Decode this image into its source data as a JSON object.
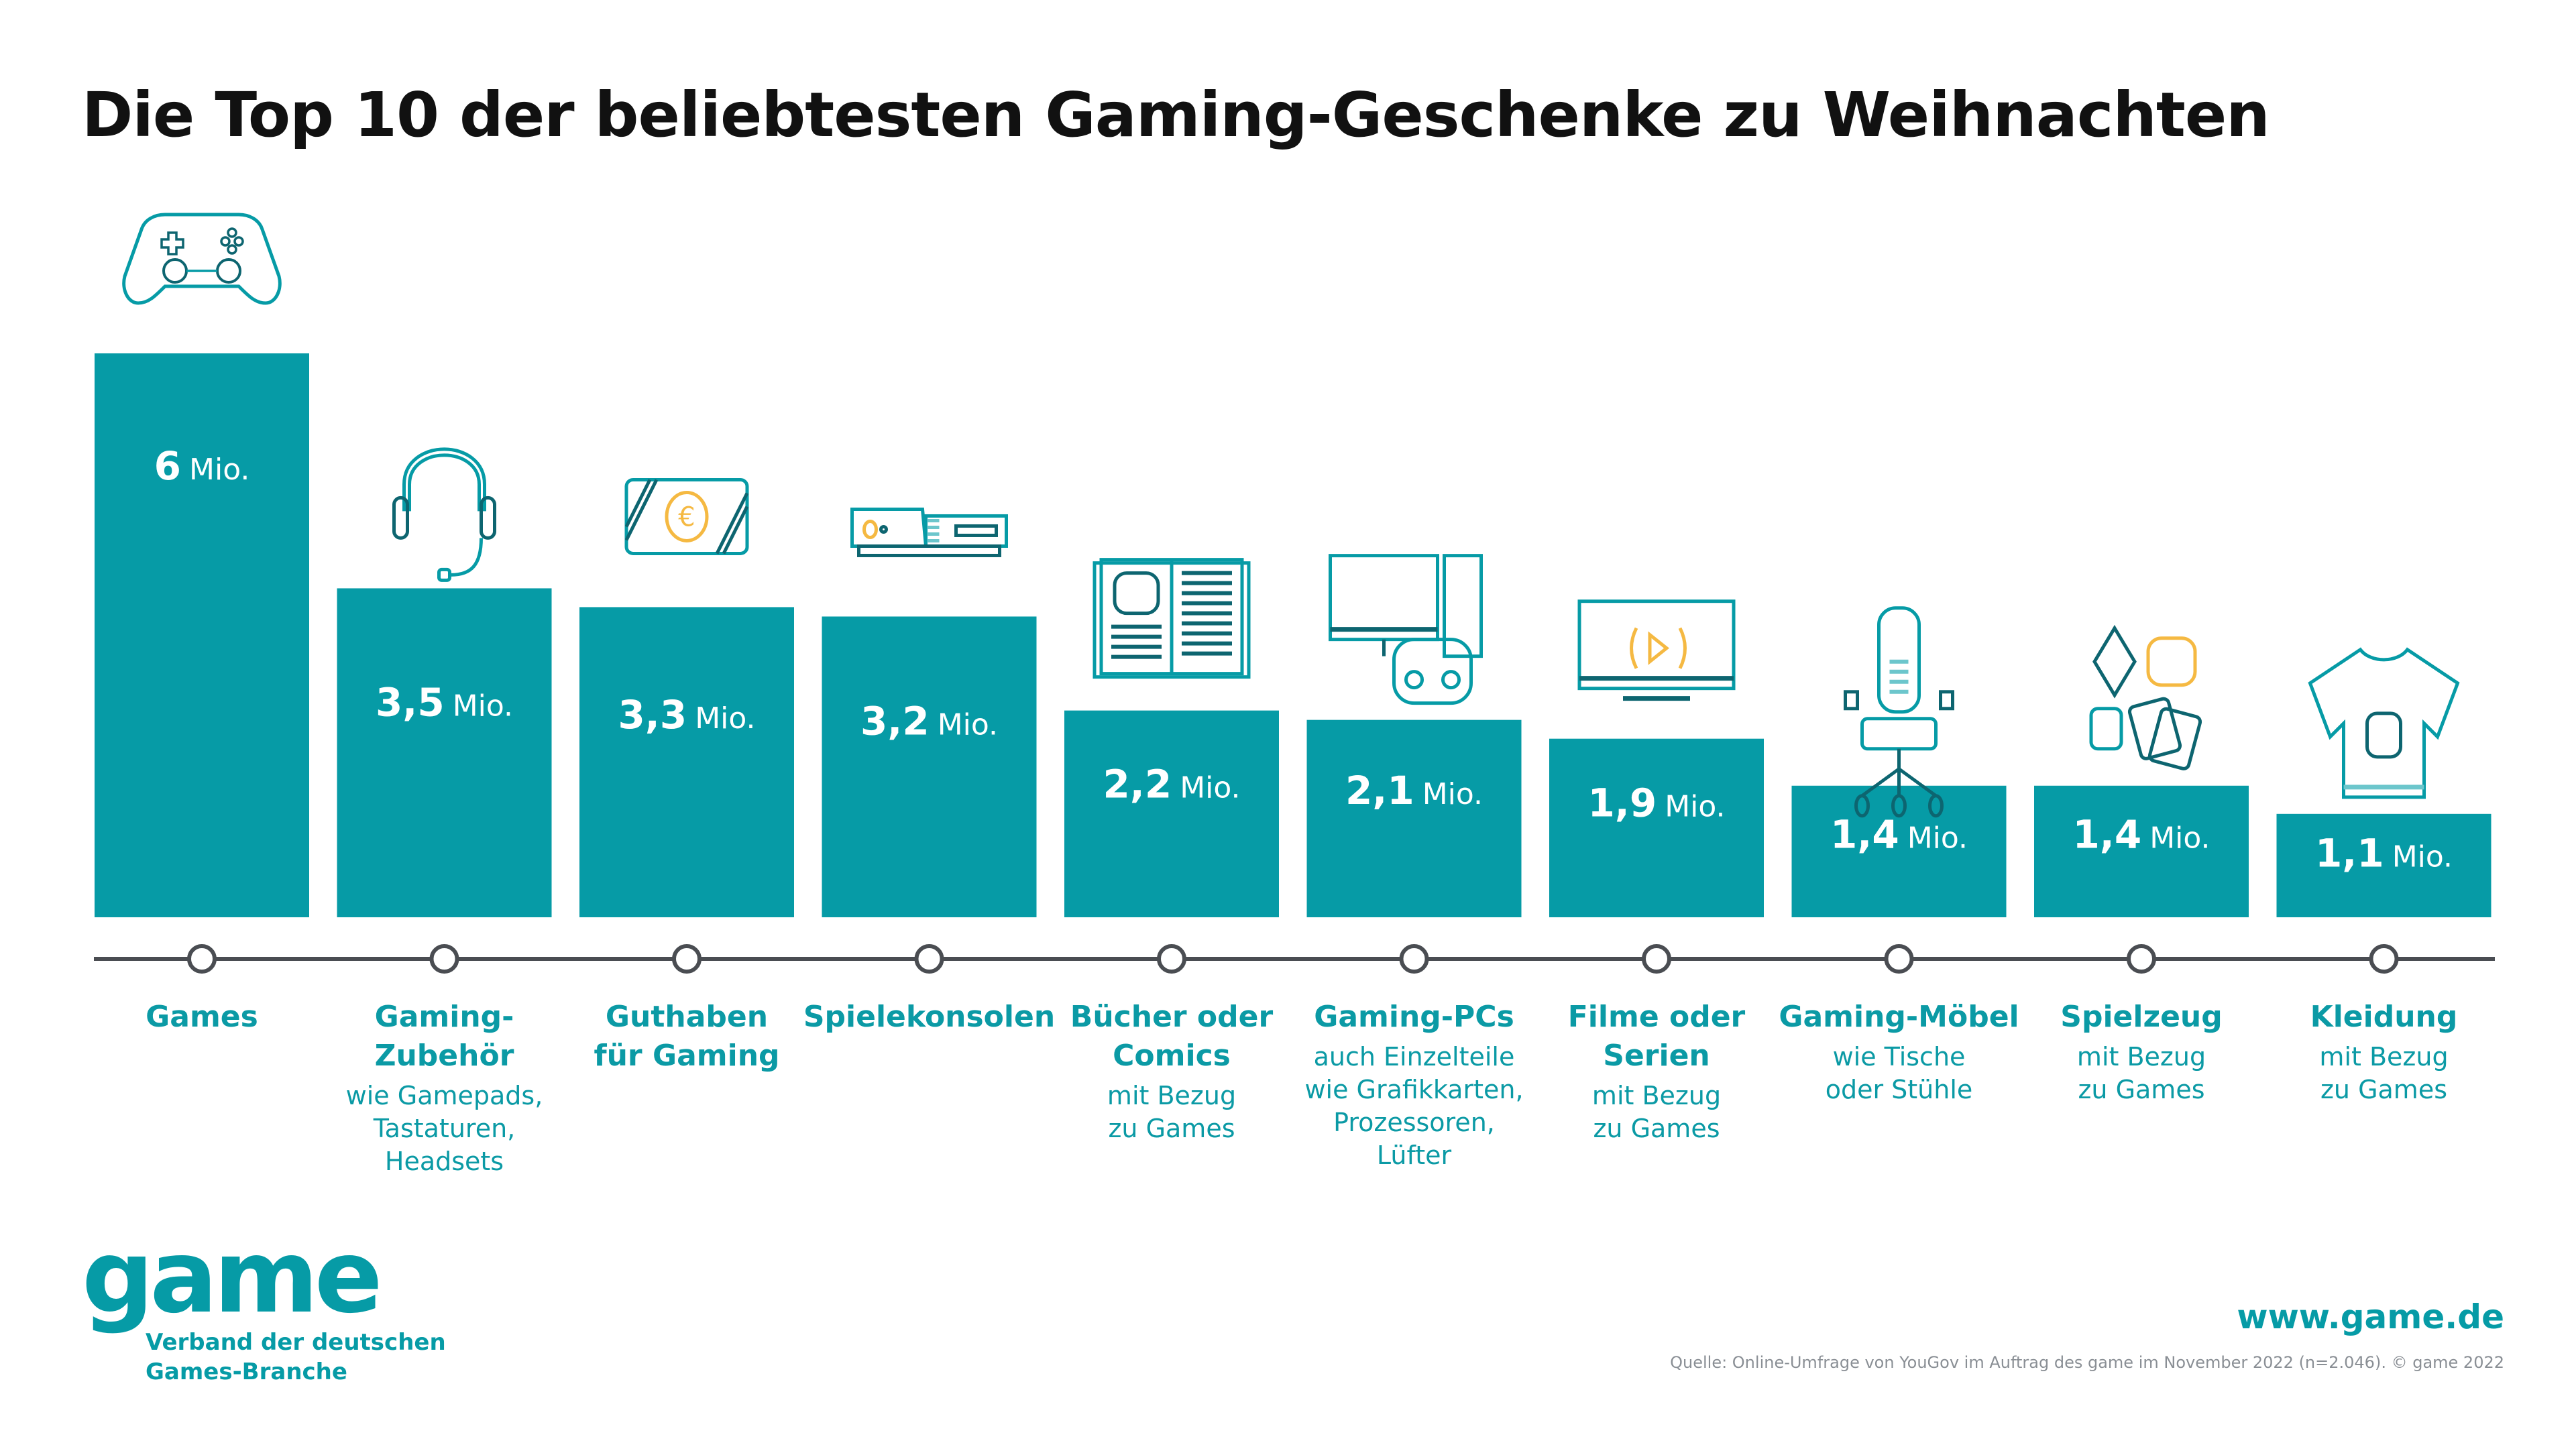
{
  "title": "Die Top 10 der beliebtesten Gaming-Geschenke zu Weihnachten",
  "colors": {
    "bar": "#069ba6",
    "icon_dark": "#0d6570",
    "icon_light": "#6cc6cc",
    "accent": "#f5b942",
    "axis": "#4a4d52",
    "text": "#0b9aa5"
  },
  "chart_data": {
    "type": "bar",
    "title": "Die Top 10 der beliebtesten Gaming-Geschenke zu Weihnachten",
    "xlabel": "",
    "ylabel": "",
    "unit": "Mio.",
    "ylim": [
      0,
      6
    ],
    "grid": false,
    "categories": [
      "Games",
      "Gaming-Zubehör",
      "Guthaben für Gaming",
      "Spielekonsolen",
      "Bücher oder Comics",
      "Gaming-PCs",
      "Filme oder Serien",
      "Gaming-Möbel",
      "Spielzeug",
      "Kleidung"
    ],
    "values": [
      6,
      3.5,
      3.3,
      3.2,
      2.2,
      2.1,
      1.9,
      1.4,
      1.4,
      1.1
    ],
    "value_labels": [
      {
        "num": "6",
        "unit": "Mio."
      },
      {
        "num": "3,5",
        "unit": "Mio."
      },
      {
        "num": "3,3",
        "unit": "Mio."
      },
      {
        "num": "3,2",
        "unit": "Mio."
      },
      {
        "num": "2,2",
        "unit": "Mio."
      },
      {
        "num": "2,1",
        "unit": "Mio."
      },
      {
        "num": "1,9",
        "unit": "Mio."
      },
      {
        "num": "1,4",
        "unit": "Mio."
      },
      {
        "num": "1,4",
        "unit": "Mio."
      },
      {
        "num": "1,1",
        "unit": "Mio."
      }
    ],
    "category_labels": [
      {
        "main": [
          "Games"
        ],
        "sub": [],
        "icon": "gamepad-icon"
      },
      {
        "main": [
          "Gaming-",
          "Zubehör"
        ],
        "sub": [
          "wie Gamepads,",
          "Tastaturen,",
          "Headsets"
        ],
        "icon": "headset-icon"
      },
      {
        "main": [
          "Guthaben",
          "für Gaming"
        ],
        "sub": [],
        "icon": "voucher-card-icon"
      },
      {
        "main": [
          "Spielekonsolen"
        ],
        "sub": [],
        "icon": "console-icon"
      },
      {
        "main": [
          "Bücher oder",
          "Comics"
        ],
        "sub": [
          "mit Bezug",
          "zu Games"
        ],
        "icon": "book-icon"
      },
      {
        "main": [
          "Gaming-PCs"
        ],
        "sub": [
          "auch Einzelteile",
          "wie Grafikkarten,",
          "Prozessoren,",
          "Lüfter"
        ],
        "icon": "pc-icon"
      },
      {
        "main": [
          "Filme oder",
          "Serien"
        ],
        "sub": [
          "mit Bezug",
          "zu Games"
        ],
        "icon": "tv-icon"
      },
      {
        "main": [
          "Gaming-Möbel"
        ],
        "sub": [
          "wie Tische",
          "oder Stühle"
        ],
        "icon": "gaming-chair-icon"
      },
      {
        "main": [
          "Spielzeug"
        ],
        "sub": [
          "mit Bezug",
          "zu Games"
        ],
        "icon": "toys-icon"
      },
      {
        "main": [
          "Kleidung"
        ],
        "sub": [
          "mit Bezug",
          "zu Games"
        ],
        "icon": "tshirt-icon"
      }
    ]
  },
  "footer": {
    "logo_word": "game",
    "logo_tagline_1": "Verband der deutschen",
    "logo_tagline_2": "Games-Branche",
    "url": "www.game.de",
    "source": "Quelle: Online-Umfrage von YouGov im Auftrag des game im November 2022 (n=2.046). © game 2022"
  }
}
